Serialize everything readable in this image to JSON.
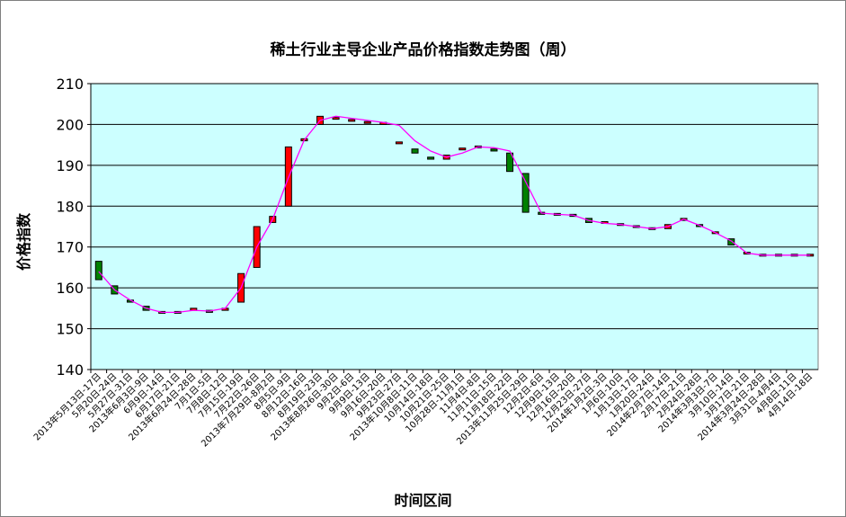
{
  "chart_data": {
    "type": "candlestick-line",
    "title": "稀土行业主导企业产品价格指数走势图（周）",
    "ylabel": "价格指数",
    "xlabel": "时间区间",
    "ylim": [
      140,
      210
    ],
    "yticks": [
      140,
      150,
      160,
      170,
      180,
      190,
      200,
      210
    ],
    "grid": true,
    "colors": {
      "plot_bg": "#ccffff",
      "up": "#ff0000",
      "down": "#008000",
      "line": "#ff00ff"
    },
    "categories": [
      "2013年5月13日-17日",
      "5月20日-24日",
      "5月27日-31日",
      "2013年6月3日-9日",
      "6月9日-14日",
      "6月17日-21日",
      "2013年6月24日-28日",
      "7月1日-5日",
      "7月8日-12日",
      "7月15日-19日",
      "7月22日-26日",
      "2013年7月29日-8月2日",
      "8月5日-9日",
      "8月12日-16日",
      "8月19日-23日",
      "2013年8月26日-30日",
      "9月2日-6日",
      "9月9日-13日",
      "9月16日-20日",
      "9月23日-27日",
      "2013年10月8日-11日",
      "10月14日-18日",
      "10月21日-25日",
      "10月28日-11月1日",
      "11月4日-8日",
      "11月11日-15日",
      "11月18日-22日",
      "2013年11月25日-29日",
      "12月2日-6日",
      "12月9日-13日",
      "12月16日-20日",
      "12月23日-27日",
      "2014年1月2日-3日",
      "1月6日-10日",
      "1月13日-17日",
      "1月20日-24日",
      "2014年2月7日-14日",
      "2月17日-21日",
      "2月24日-28日",
      "2014年3月3日-7日",
      "3月10日-14日",
      "3月17日-21日",
      "2014年3月24日-28日",
      "3月31日-4月4日",
      "4月8日-11日",
      "4月14日-18日"
    ],
    "open": [
      166.5,
      160.5,
      157.0,
      155.5,
      154.0,
      154.0,
      154.5,
      154.5,
      154.5,
      156.5,
      165.0,
      176.0,
      180.0,
      196.0,
      200.0,
      201.5,
      201.0,
      200.5,
      200.0,
      195.5,
      194.0,
      192.0,
      191.5,
      194.0,
      194.5,
      194.0,
      193.0,
      188.0,
      178.5,
      178.0,
      178.0,
      177.0,
      176.0,
      175.5,
      175.0,
      174.5,
      174.5,
      176.5,
      175.5,
      173.5,
      172.0,
      168.5,
      168.0,
      168.0,
      168.0,
      168.0
    ],
    "close": [
      162.0,
      158.5,
      156.5,
      154.5,
      154.0,
      154.0,
      155.0,
      154.0,
      155.0,
      163.5,
      175.0,
      177.5,
      194.5,
      196.5,
      202.0,
      201.5,
      201.0,
      200.5,
      200.5,
      195.5,
      193.0,
      191.5,
      192.5,
      194.0,
      194.5,
      193.5,
      188.5,
      178.5,
      178.0,
      178.0,
      177.5,
      176.0,
      176.0,
      175.5,
      175.0,
      174.5,
      175.5,
      177.0,
      175.0,
      173.5,
      170.5,
      168.5,
      168.0,
      168.0,
      168.0,
      168.0
    ],
    "line": [
      164.0,
      159.5,
      157.0,
      155.0,
      154.0,
      154.0,
      154.5,
      154.3,
      155.0,
      160.0,
      170.0,
      176.8,
      187.0,
      196.2,
      201.0,
      202.0,
      201.5,
      201.0,
      200.5,
      199.8,
      196.0,
      193.5,
      192.0,
      193.0,
      194.5,
      194.3,
      193.5,
      186.0,
      178.3,
      178.0,
      177.8,
      176.5,
      175.8,
      175.5,
      175.0,
      174.5,
      175.0,
      176.8,
      175.3,
      173.5,
      171.5,
      168.5,
      168.0,
      168.0,
      168.0,
      168.0
    ]
  }
}
